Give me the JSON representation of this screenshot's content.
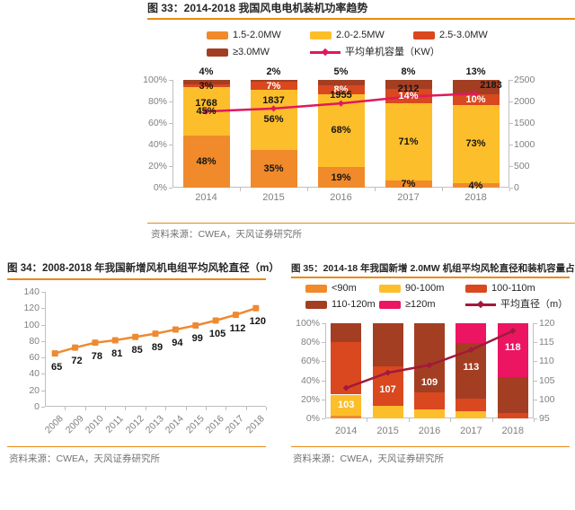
{
  "colors": {
    "orange": "#F08A2B",
    "yellow": "#FDBE2B",
    "red_orange": "#D9481F",
    "dark_red": "#A33E22",
    "pink": "#EB1562",
    "line_pink": "#E0195C",
    "line_maroon": "#A11A3C",
    "line_orange": "#EE8A31",
    "rule_orange": "#E98A15",
    "axis_gray": "#BFBFBF",
    "tick_gray": "#808080",
    "source_gray": "#737373"
  },
  "figures": [
    {
      "id": "fig33",
      "title": "图 33：2014-2018 我国风电电机装机功率趋势",
      "source": "资料来源：CWEA，天风证券研究所"
    },
    {
      "id": "fig34",
      "title": "图 34：2008-2018 年我国新增风机电组平均风轮直径（m）",
      "source": "资料来源：CWEA，天风证券研究所"
    },
    {
      "id": "fig35",
      "title": "图 35：2014-18 年我国新增 2.0MW 机组平均风轮直径和装机容量占比",
      "source": "资料来源：CWEA，天风证券研究所"
    }
  ],
  "chart_data": [
    {
      "type": "bar",
      "subtype": "stacked-percent-with-line",
      "title": "2014-2018 我国风电电机装机功率趋势",
      "categories": [
        "2014",
        "2015",
        "2016",
        "2017",
        "2018"
      ],
      "series": [
        {
          "name": "1.5-2.0MW",
          "color_key": "orange",
          "values": [
            48,
            35,
            19,
            7,
            4
          ],
          "label_pos": "inside"
        },
        {
          "name": "2.0-2.5MW",
          "color_key": "yellow",
          "values": [
            45,
            56,
            68,
            71,
            73
          ],
          "label_pos": "inside"
        },
        {
          "name": "2.5-3.0MW",
          "color_key": "red_orange",
          "values": [
            3,
            7,
            8,
            14,
            10
          ],
          "label_pos": "inside"
        },
        {
          "name": "≥3.0MW",
          "color_key": "dark_red",
          "values": [
            4,
            2,
            5,
            8,
            13
          ],
          "label_pos": "above"
        }
      ],
      "line": {
        "name": "平均单机容量（KW）",
        "color_key": "line_pink",
        "axis": "right",
        "values": [
          1768,
          1837,
          1955,
          2112,
          2183
        ]
      },
      "left_axis": {
        "ticks": [
          "100%",
          "80%",
          "60%",
          "40%",
          "20%",
          "0%"
        ],
        "min": 0,
        "max": 100
      },
      "right_axis": {
        "ticks": [
          "2500",
          "2000",
          "1500",
          "1000",
          "500",
          "0"
        ],
        "min": 0,
        "max": 2500
      },
      "legend_position": "top"
    },
    {
      "type": "line",
      "title": "2008-2018 年我国新增风机电组平均风轮直径（m）",
      "categories": [
        "2008",
        "2009",
        "2010",
        "2011",
        "2012",
        "2013",
        "2014",
        "2015",
        "2016",
        "2017",
        "2018"
      ],
      "values": [
        65,
        72,
        78,
        81,
        85,
        89,
        94,
        99,
        105,
        112,
        120
      ],
      "color_key": "line_orange",
      "yticks": [
        "140",
        "120",
        "100",
        "80",
        "60",
        "40",
        "20",
        "0"
      ],
      "ylim": [
        0,
        140
      ],
      "grid": false
    },
    {
      "type": "bar",
      "subtype": "stacked-percent-with-line",
      "title": "2014-18 年我国新增 2.0MW 机组平均风轮直径和装机容量占比",
      "categories": [
        "2014",
        "2015",
        "2016",
        "2017",
        "2018"
      ],
      "series": [
        {
          "name": "<90m",
          "color_key": "orange",
          "values": [
            3,
            0,
            0,
            0,
            0
          ]
        },
        {
          "name": "90-100m",
          "color_key": "yellow",
          "values": [
            22,
            13,
            9,
            8,
            0
          ]
        },
        {
          "name": "100-110m",
          "color_key": "red_orange",
          "values": [
            55,
            42,
            18,
            13,
            6
          ]
        },
        {
          "name": "110-120m",
          "color_key": "dark_red",
          "values": [
            20,
            45,
            73,
            58,
            37
          ]
        },
        {
          "name": "≥120m",
          "color_key": "pink",
          "values": [
            0,
            0,
            0,
            21,
            57
          ]
        }
      ],
      "line": {
        "name": "平均直径（m）",
        "color_key": "line_maroon",
        "axis": "right",
        "values": [
          103,
          107,
          109,
          113,
          118
        ]
      },
      "left_axis": {
        "ticks": [
          "100%",
          "80%",
          "60%",
          "40%",
          "20%",
          "0%"
        ],
        "min": 0,
        "max": 100
      },
      "right_axis": {
        "ticks": [
          "120",
          "115",
          "110",
          "105",
          "100",
          "95"
        ],
        "min": 95,
        "max": 120
      },
      "legend_position": "top"
    }
  ]
}
